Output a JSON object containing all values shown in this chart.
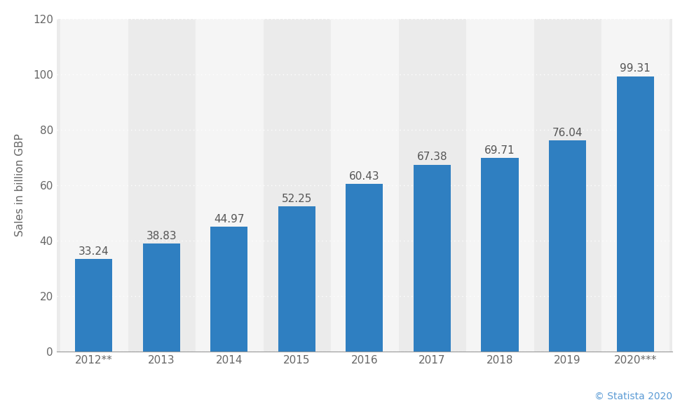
{
  "categories": [
    "2012**",
    "2013",
    "2014",
    "2015",
    "2016",
    "2017",
    "2018",
    "2019",
    "2020***"
  ],
  "values": [
    33.24,
    38.83,
    44.97,
    52.25,
    60.43,
    67.38,
    69.71,
    76.04,
    99.31
  ],
  "bar_color": "#2f7fc1",
  "ylabel": "Sales in billion GBP",
  "ylim": [
    0,
    120
  ],
  "yticks": [
    0,
    20,
    40,
    60,
    80,
    100,
    120
  ],
  "background_color": "#ffffff",
  "plot_bg_color": "#ebebeb",
  "alt_band_color": "#f5f5f5",
  "grid_color": "#ffffff",
  "label_color": "#666666",
  "value_label_color": "#555555",
  "value_label_fontsize": 11,
  "axis_label_fontsize": 11,
  "tick_fontsize": 11,
  "watermark": "© Statista 2020",
  "watermark_color": "#5b9bd5",
  "watermark_fontsize": 10
}
